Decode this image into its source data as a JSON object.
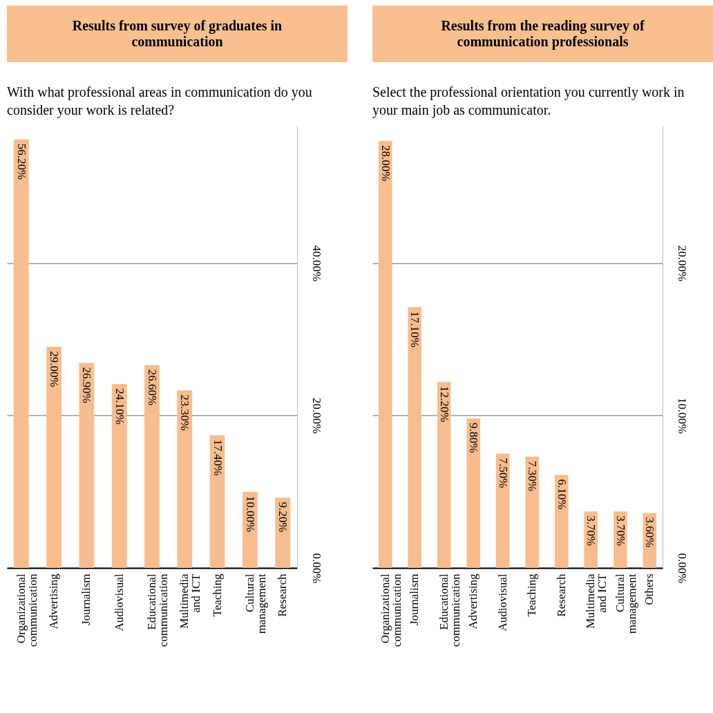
{
  "chart_data": [
    {
      "type": "bar",
      "title": "Results from survey of graduates in communication",
      "subtitle": "With what professional areas in communication do you consider your work is related?",
      "categories": [
        "Organizational communication",
        "Advertising",
        "Journalism",
        "Audiovisual",
        "Educational communication",
        "Multimedia and ICT",
        "Teaching",
        "Cultural management",
        "Research"
      ],
      "values": [
        56.2,
        29.0,
        26.9,
        24.1,
        26.6,
        23.3,
        17.4,
        10.0,
        9.2
      ],
      "value_labels": [
        "56.20%",
        "29.00%",
        "26.90%",
        "24.10%",
        "26.60%",
        "23.30%",
        "17.40%",
        "10.00%",
        "9.20%"
      ],
      "color": "#f8bd8e",
      "ylim": [
        0,
        58
      ],
      "yticks": [
        {
          "value": 0,
          "label": "0.00%"
        },
        {
          "value": 20,
          "label": "20.00%"
        },
        {
          "value": 40,
          "label": "40.00%"
        }
      ],
      "grid": "y"
    },
    {
      "type": "bar",
      "title": "Results from the reading survey of communication professionals",
      "subtitle": "Select the professional orientation you currently work in your main job as communicator.",
      "categories": [
        "Organizational communication",
        "Journalism",
        "Educational communication",
        "Advertising",
        "Audiovisual",
        "Teaching",
        "Research",
        "Multimedia and ICT",
        "Cultural management",
        "Others"
      ],
      "values": [
        28.0,
        17.1,
        12.2,
        9.8,
        7.5,
        7.3,
        6.1,
        3.7,
        3.7,
        3.6
      ],
      "value_labels": [
        "28.00%",
        "17.10%",
        "12.20%",
        "9.80%",
        "7.50%",
        "7.30%",
        "6.10%",
        "3.70%",
        "3.70%",
        "3.60%"
      ],
      "color": "#f8bd8e",
      "ylim": [
        0,
        29
      ],
      "yticks": [
        {
          "value": 0,
          "label": "0.00%"
        },
        {
          "value": 10,
          "label": "10.00%"
        },
        {
          "value": 20,
          "label": "20.00%"
        }
      ],
      "grid": "y"
    }
  ]
}
